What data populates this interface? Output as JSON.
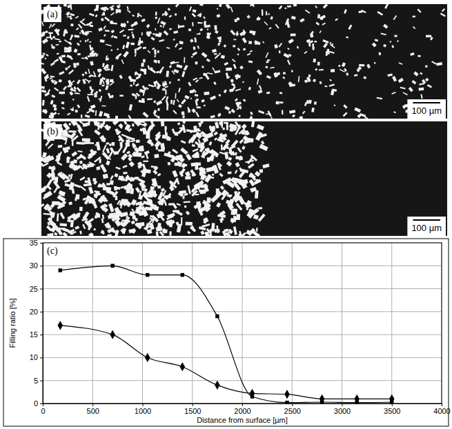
{
  "micrographs": [
    {
      "label": "(a)",
      "scale_bar": "100 µm"
    },
    {
      "label": "(b)",
      "scale_bar": "100 µm"
    }
  ],
  "chart_data": {
    "type": "line",
    "panel_label": "(c)",
    "x_label": "Distance from surface [µm]",
    "y_label": "Filling ratio [%]",
    "x": [
      175,
      700,
      1050,
      1400,
      1750,
      2100,
      2450,
      2800,
      3150,
      3500
    ],
    "series": [
      {
        "color": "#000000",
        "marker": "square",
        "line_style": "solid",
        "values": [
          29,
          30,
          28,
          28,
          19,
          1.5,
          0.2,
          0.3,
          0.2,
          0.3
        ]
      },
      {
        "color": "#000000",
        "marker": "diamond",
        "line_style": "solid",
        "values": [
          17,
          15,
          10,
          8,
          4,
          2.2,
          2,
          1,
          1,
          1
        ]
      }
    ],
    "xlim": [
      0,
      4000
    ],
    "xticks": [
      0,
      500,
      1000,
      1500,
      2000,
      2500,
      3000,
      3500,
      4000
    ],
    "ylim": [
      0,
      35
    ],
    "yticks": [
      0,
      5,
      10,
      15,
      20,
      25,
      30,
      35
    ],
    "grid": true
  }
}
